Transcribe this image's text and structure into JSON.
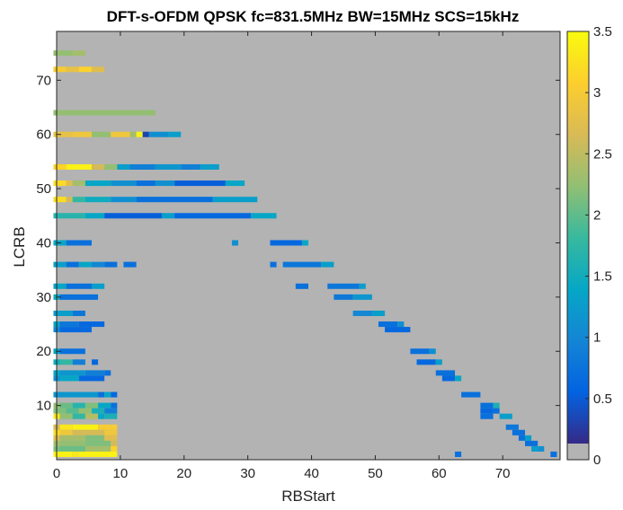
{
  "chart_data": {
    "type": "heatmap",
    "title": "DFT-s-OFDM QPSK fc=831.5MHz BW=15MHz SCS=15kHz",
    "xlabel": "RBStart",
    "ylabel": "LCRB",
    "xlim": [
      0,
      79
    ],
    "ylim": [
      0,
      79
    ],
    "x_ticks": [
      0,
      10,
      20,
      30,
      40,
      50,
      60,
      70
    ],
    "y_ticks": [
      10,
      20,
      30,
      40,
      50,
      60,
      70
    ],
    "background_color": "#b3b3b3",
    "colormap": "parula",
    "colorbar": {
      "min": 0,
      "max": 3.5,
      "ticks": [
        "0",
        "0.5",
        "1",
        "1.5",
        "2",
        "2.5",
        "3",
        "3.5"
      ],
      "below_min_color": "#b3b3b3",
      "colors": [
        "#352a87",
        "#0363e1",
        "#1485d4",
        "#06a7c6",
        "#38b99e",
        "#92bf73",
        "#d9ba56",
        "#fcce2e",
        "#f9fb0e"
      ]
    },
    "cells_format": "[rb_start_first, rb_start_last, lcrb, value]",
    "cells": [
      [
        0,
        2,
        75,
        2.2
      ],
      [
        3,
        4,
        75,
        2.3
      ],
      [
        0,
        1,
        72,
        3.0
      ],
      [
        2,
        3,
        72,
        2.8
      ],
      [
        4,
        5,
        72,
        3.1
      ],
      [
        6,
        7,
        72,
        2.7
      ],
      [
        0,
        15,
        64,
        2.2
      ],
      [
        0,
        2,
        60,
        2.8
      ],
      [
        3,
        5,
        60,
        2.9
      ],
      [
        6,
        8,
        60,
        2.2
      ],
      [
        9,
        11,
        60,
        2.9
      ],
      [
        12,
        12,
        60,
        2.3
      ],
      [
        13,
        13,
        60,
        3.4
      ],
      [
        14,
        14,
        60,
        0.2
      ],
      [
        15,
        17,
        60,
        1.0
      ],
      [
        18,
        19,
        60,
        1.2
      ],
      [
        0,
        1,
        54,
        3.1
      ],
      [
        2,
        5,
        54,
        3.4
      ],
      [
        6,
        7,
        54,
        2.6
      ],
      [
        8,
        9,
        54,
        2.2
      ],
      [
        10,
        11,
        54,
        1.2
      ],
      [
        12,
        15,
        54,
        0.8
      ],
      [
        16,
        19,
        54,
        1.1
      ],
      [
        20,
        22,
        54,
        0.8
      ],
      [
        23,
        25,
        54,
        1.2
      ],
      [
        0,
        1,
        51,
        3.2
      ],
      [
        2,
        2,
        51,
        2.7
      ],
      [
        3,
        4,
        51,
        2.3
      ],
      [
        5,
        8,
        51,
        1.3
      ],
      [
        9,
        12,
        51,
        1.0
      ],
      [
        13,
        15,
        51,
        0.6
      ],
      [
        16,
        18,
        51,
        1.0
      ],
      [
        19,
        26,
        51,
        0.4
      ],
      [
        27,
        29,
        51,
        1.3
      ],
      [
        0,
        1,
        48,
        3.2
      ],
      [
        2,
        2,
        48,
        2.6
      ],
      [
        3,
        4,
        48,
        1.7
      ],
      [
        5,
        8,
        48,
        1.4
      ],
      [
        9,
        12,
        48,
        1.0
      ],
      [
        13,
        24,
        48,
        0.6
      ],
      [
        25,
        31,
        48,
        1.2
      ],
      [
        0,
        4,
        45,
        1.6
      ],
      [
        5,
        7,
        45,
        1.3
      ],
      [
        8,
        16,
        45,
        0.4
      ],
      [
        17,
        18,
        45,
        1.2
      ],
      [
        19,
        30,
        45,
        0.5
      ],
      [
        31,
        34,
        45,
        1.3
      ],
      [
        0,
        1,
        40,
        1.3
      ],
      [
        2,
        5,
        40,
        0.6
      ],
      [
        28,
        28,
        40,
        1.0
      ],
      [
        34,
        38,
        40,
        0.5
      ],
      [
        39,
        39,
        40,
        1.3
      ],
      [
        0,
        1,
        36,
        1.2
      ],
      [
        2,
        3,
        36,
        0.6
      ],
      [
        4,
        5,
        36,
        1.3
      ],
      [
        6,
        7,
        36,
        0.9
      ],
      [
        8,
        9,
        36,
        0.6
      ],
      [
        11,
        12,
        36,
        0.6
      ],
      [
        34,
        34,
        36,
        0.6
      ],
      [
        36,
        41,
        36,
        0.7
      ],
      [
        42,
        43,
        36,
        1.2
      ],
      [
        0,
        1,
        32,
        1.3
      ],
      [
        2,
        5,
        32,
        0.6
      ],
      [
        6,
        7,
        32,
        1.2
      ],
      [
        38,
        39,
        32,
        0.6
      ],
      [
        43,
        47,
        32,
        0.7
      ],
      [
        48,
        48,
        32,
        1.2
      ],
      [
        0,
        0,
        30,
        1.4
      ],
      [
        1,
        6,
        30,
        0.6
      ],
      [
        44,
        46,
        30,
        0.7
      ],
      [
        47,
        49,
        30,
        1.1
      ],
      [
        0,
        2,
        27,
        1.2
      ],
      [
        3,
        4,
        27,
        0.7
      ],
      [
        47,
        49,
        27,
        0.9
      ],
      [
        50,
        51,
        27,
        1.2
      ],
      [
        0,
        0,
        25,
        1.3
      ],
      [
        1,
        3,
        25,
        0.7
      ],
      [
        4,
        7,
        25,
        0.5
      ],
      [
        51,
        53,
        25,
        0.6
      ],
      [
        54,
        54,
        25,
        1.0
      ],
      [
        0,
        0,
        24,
        0.9
      ],
      [
        1,
        5,
        24,
        0.5
      ],
      [
        52,
        55,
        24,
        0.5
      ],
      [
        0,
        0,
        20,
        1.3
      ],
      [
        1,
        4,
        20,
        0.6
      ],
      [
        56,
        58,
        20,
        0.6
      ],
      [
        59,
        59,
        20,
        1.0
      ],
      [
        0,
        0,
        18,
        1.4
      ],
      [
        1,
        2,
        18,
        1.7
      ],
      [
        3,
        4,
        18,
        0.8
      ],
      [
        6,
        6,
        18,
        0.5
      ],
      [
        57,
        59,
        18,
        0.5
      ],
      [
        60,
        60,
        18,
        1.2
      ],
      [
        0,
        0,
        16,
        1.3
      ],
      [
        1,
        4,
        16,
        1.1
      ],
      [
        5,
        7,
        16,
        0.8
      ],
      [
        8,
        8,
        16,
        0.6
      ],
      [
        60,
        62,
        16,
        0.6
      ],
      [
        0,
        0,
        15,
        1.0
      ],
      [
        1,
        3,
        15,
        1.3
      ],
      [
        4,
        7,
        15,
        0.5
      ],
      [
        61,
        62,
        15,
        0.5
      ],
      [
        63,
        63,
        15,
        1.3
      ],
      [
        0,
        6,
        12,
        1.1
      ],
      [
        7,
        7,
        12,
        0.6
      ],
      [
        8,
        8,
        12,
        1.3
      ],
      [
        9,
        9,
        12,
        0.5
      ],
      [
        64,
        66,
        12,
        0.6
      ],
      [
        0,
        0,
        10,
        2.2
      ],
      [
        1,
        2,
        10,
        2.0
      ],
      [
        3,
        4,
        10,
        1.6
      ],
      [
        5,
        6,
        10,
        2.1
      ],
      [
        7,
        8,
        10,
        1.3
      ],
      [
        9,
        9,
        10,
        0.6
      ],
      [
        67,
        68,
        10,
        0.6
      ],
      [
        69,
        69,
        10,
        1.5
      ],
      [
        0,
        1,
        9,
        2.1
      ],
      [
        2,
        3,
        9,
        1.9
      ],
      [
        4,
        5,
        9,
        2.2
      ],
      [
        6,
        7,
        9,
        1.5
      ],
      [
        8,
        9,
        9,
        0.8
      ],
      [
        67,
        68,
        9,
        0.5
      ],
      [
        69,
        69,
        9,
        0.6
      ],
      [
        0,
        0,
        8,
        3.3
      ],
      [
        1,
        2,
        8,
        2.2
      ],
      [
        3,
        4,
        8,
        1.7
      ],
      [
        5,
        6,
        8,
        2.4
      ],
      [
        7,
        7,
        8,
        1.3
      ],
      [
        8,
        9,
        8,
        1.5
      ],
      [
        67,
        68,
        8,
        0.6
      ],
      [
        70,
        71,
        8,
        1.2
      ],
      [
        0,
        0,
        6,
        2.6
      ],
      [
        1,
        2,
        6,
        3.3
      ],
      [
        3,
        6,
        6,
        3.4
      ],
      [
        7,
        9,
        6,
        3.0
      ],
      [
        71,
        72,
        6,
        0.7
      ],
      [
        0,
        0,
        5,
        3.2
      ],
      [
        1,
        2,
        5,
        2.9
      ],
      [
        3,
        7,
        5,
        2.6
      ],
      [
        8,
        9,
        5,
        2.9
      ],
      [
        72,
        73,
        5,
        0.6
      ],
      [
        0,
        0,
        4,
        2.7
      ],
      [
        1,
        4,
        4,
        2.3
      ],
      [
        5,
        7,
        4,
        2.1
      ],
      [
        8,
        9,
        4,
        2.7
      ],
      [
        73,
        73,
        4,
        0.6
      ],
      [
        74,
        74,
        4,
        1.2
      ],
      [
        0,
        0,
        3,
        2.3
      ],
      [
        1,
        4,
        3,
        2.2
      ],
      [
        5,
        8,
        3,
        2.1
      ],
      [
        9,
        9,
        3,
        2.6
      ],
      [
        74,
        75,
        3,
        0.6
      ],
      [
        0,
        0,
        2,
        2.1
      ],
      [
        1,
        4,
        2,
        2.0
      ],
      [
        5,
        8,
        2,
        2.3
      ],
      [
        9,
        9,
        2,
        3.1
      ],
      [
        75,
        75,
        2,
        1.2
      ],
      [
        76,
        76,
        2,
        1.0
      ],
      [
        0,
        2,
        1,
        3.4
      ],
      [
        3,
        3,
        1,
        3.3
      ],
      [
        4,
        9,
        1,
        3.4
      ],
      [
        63,
        63,
        1,
        0.6
      ],
      [
        78,
        78,
        1,
        0.6
      ]
    ]
  }
}
